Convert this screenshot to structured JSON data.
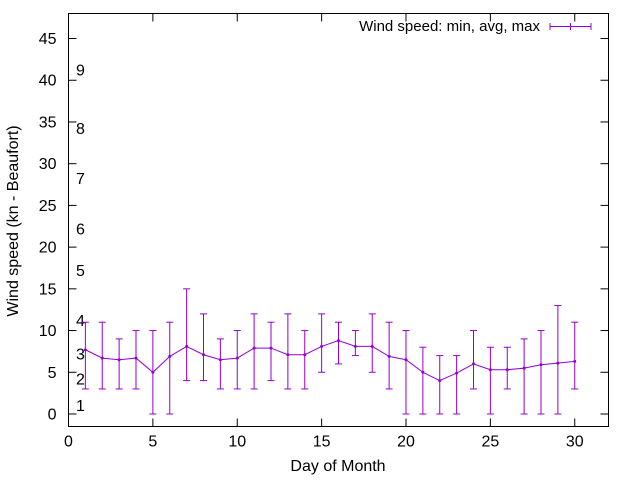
{
  "chart_data": {
    "type": "line",
    "xlabel": "Day of Month",
    "ylabel": "Wind speed (kn - Beaufort)",
    "xlim": [
      0,
      32
    ],
    "ylim": [
      -1.5,
      48
    ],
    "xticks": [
      0,
      5,
      10,
      15,
      20,
      25,
      30
    ],
    "yticks": [
      0,
      5,
      10,
      15,
      20,
      25,
      30,
      35,
      40,
      45
    ],
    "beaufort_labels": [
      {
        "text": "1",
        "y": 1
      },
      {
        "text": "2",
        "y": 4.2
      },
      {
        "text": "3",
        "y": 7.2
      },
      {
        "text": "4",
        "y": 11.2
      },
      {
        "text": "5",
        "y": 17.2
      },
      {
        "text": "6",
        "y": 22.2
      },
      {
        "text": "7",
        "y": 28.2
      },
      {
        "text": "8",
        "y": 34.2
      },
      {
        "text": "9",
        "y": 41.2
      }
    ],
    "legend": {
      "label": "Wind speed: min, avg, max",
      "placement": "top-right"
    },
    "series_color": "#9400d3",
    "series": [
      {
        "x": [
          1,
          2,
          3,
          4,
          5,
          6,
          7,
          8,
          9,
          10,
          11,
          12,
          13,
          14,
          15,
          16,
          17,
          18,
          19,
          20,
          21,
          22,
          23,
          24,
          25,
          26,
          27,
          28,
          29,
          30
        ],
        "avg": [
          7.7,
          6.7,
          6.5,
          6.7,
          5,
          6.9,
          8.1,
          7.1,
          6.5,
          6.7,
          7.9,
          7.9,
          7.1,
          7.1,
          8.1,
          8.8,
          8.1,
          8.1,
          6.9,
          6.5,
          5,
          4,
          4.9,
          6,
          5.3,
          5.3,
          5.5,
          5.9,
          6.1,
          6.3
        ],
        "min": [
          3,
          3,
          3,
          3,
          0,
          0,
          4,
          4,
          3,
          3,
          3,
          4,
          3,
          3,
          5,
          6,
          7,
          5,
          3,
          0,
          0,
          0,
          0,
          3,
          0,
          3,
          0,
          0,
          0,
          3
        ],
        "max": [
          11,
          11,
          9,
          10,
          10,
          11,
          15,
          12,
          9,
          10,
          12,
          11,
          12,
          10,
          12,
          11,
          10,
          12,
          11,
          10,
          8,
          7,
          7,
          10,
          8,
          8,
          9,
          10,
          13,
          11
        ]
      }
    ]
  }
}
